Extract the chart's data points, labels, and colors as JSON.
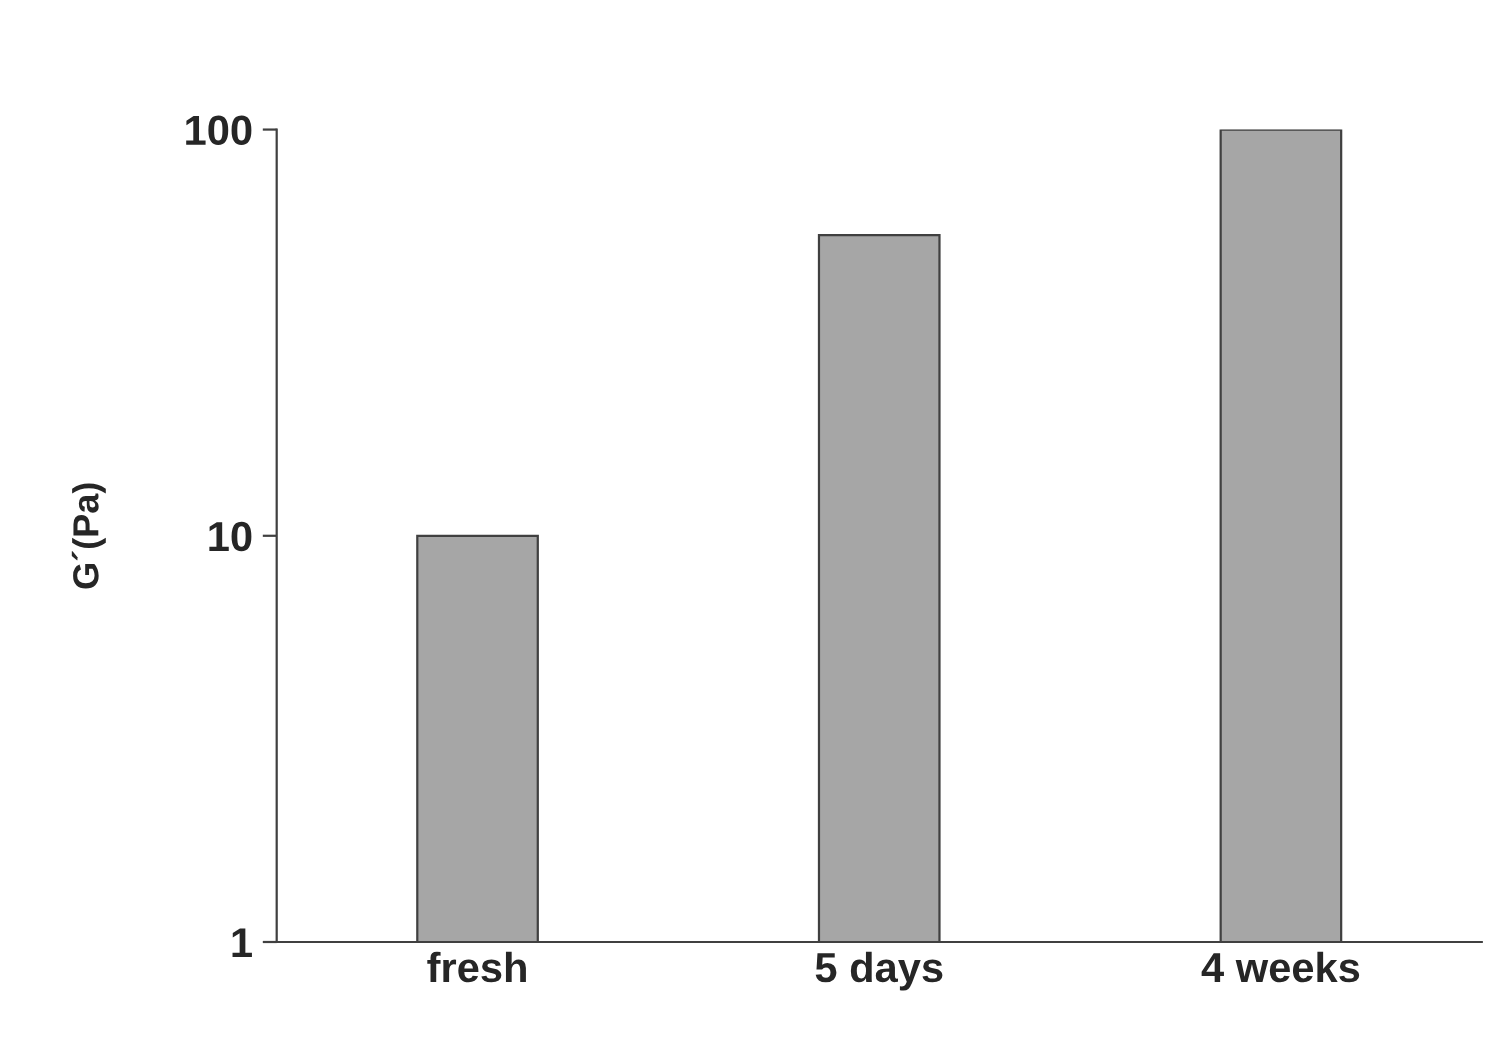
{
  "chart_data": {
    "type": "bar",
    "ylabel": "G´(Pa)",
    "categories": [
      "fresh",
      "5 days",
      "4 weeks"
    ],
    "values": [
      10,
      55,
      100
    ],
    "color": "#a6a6a6",
    "log": true,
    "ylim": [
      1,
      100
    ],
    "yticks": [
      1,
      10,
      100
    ],
    "grid": false,
    "legend": false
  }
}
